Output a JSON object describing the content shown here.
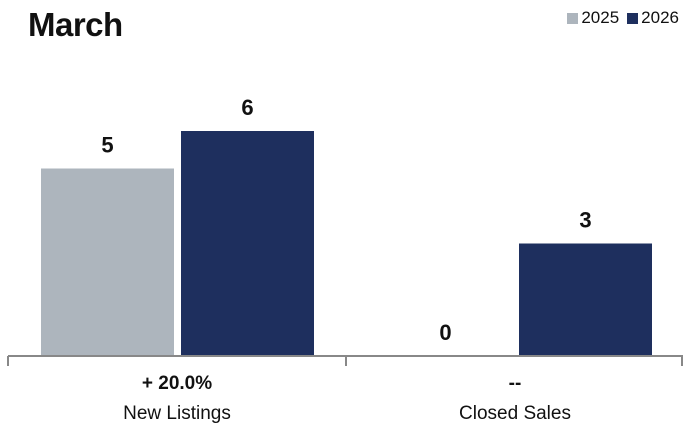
{
  "chart_data": {
    "type": "bar",
    "title": "March",
    "categories": [
      "New Listings",
      "Closed Sales"
    ],
    "changes": [
      "+ 20.0%",
      "--"
    ],
    "series": [
      {
        "name": "2025",
        "values": [
          5,
          0
        ],
        "color": "#adb5bd"
      },
      {
        "name": "2026",
        "values": [
          6,
          3
        ],
        "color": "#1e2f5e"
      }
    ],
    "ylim": [
      0,
      7
    ],
    "legend_position": "top-right",
    "grid": false
  }
}
